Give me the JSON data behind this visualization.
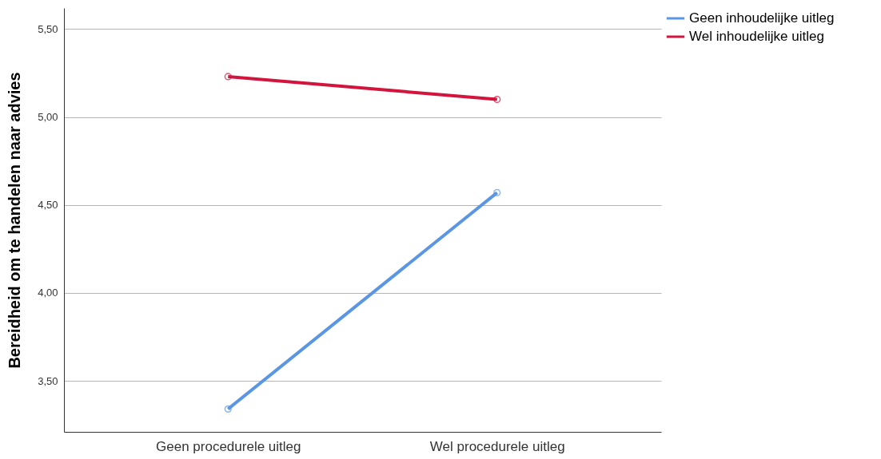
{
  "chart_data": {
    "type": "line",
    "ylabel": "Bereidheid om te handelen naar advies",
    "categories": [
      "Geen procedurele uitleg",
      "Wel procedurele uitleg"
    ],
    "series": [
      {
        "name": "Geen inhoudelijke uitleg",
        "color": "#5a96e3",
        "values": [
          3.34,
          4.57
        ]
      },
      {
        "name": "Wel inhoudelijke uitleg",
        "color": "#d2153d",
        "values": [
          5.23,
          5.1
        ]
      }
    ],
    "ylim": [
      3.21,
      5.62
    ],
    "yticks": [
      {
        "value": 3.5,
        "label": "3,50"
      },
      {
        "value": 4.0,
        "label": "4,00"
      },
      {
        "value": 4.5,
        "label": "4,50"
      },
      {
        "value": 5.0,
        "label": "5,00"
      },
      {
        "value": 5.5,
        "label": "5,50"
      }
    ],
    "grid": "y",
    "legend": "top right",
    "marker": "circle",
    "line_style": "solid"
  }
}
